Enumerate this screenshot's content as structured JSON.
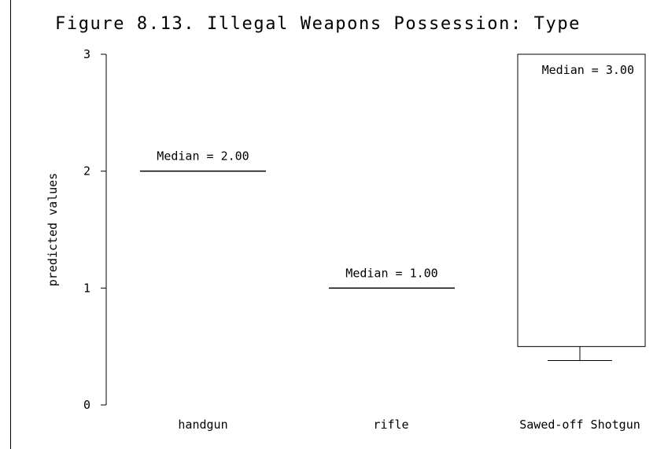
{
  "chart_data": {
    "type": "box",
    "title": "Figure 8.13. Illegal Weapons Possession: Type",
    "xlabel": "",
    "ylabel": "predicted values",
    "ylim": [
      0,
      3
    ],
    "yticks": [
      0,
      1,
      2,
      3
    ],
    "categories": [
      "handgun",
      "rifle",
      "Sawed-off Shotgun"
    ],
    "boxes": [
      {
        "category": "handgun",
        "median": 2.0,
        "q1": 2.0,
        "q3": 2.0,
        "whisker_low": 2.0,
        "whisker_high": 2.0,
        "median_label": "Median = 2.00"
      },
      {
        "category": "rifle",
        "median": 1.0,
        "q1": 1.0,
        "q3": 1.0,
        "whisker_low": 1.0,
        "whisker_high": 1.0,
        "median_label": "Median = 1.00"
      },
      {
        "category": "Sawed-off Shotgun",
        "median": 3.0,
        "q1": 0.5,
        "q3": 3.0,
        "whisker_low": 0.38,
        "whisker_high": 3.0,
        "median_label": "Median = 3.00"
      }
    ]
  }
}
